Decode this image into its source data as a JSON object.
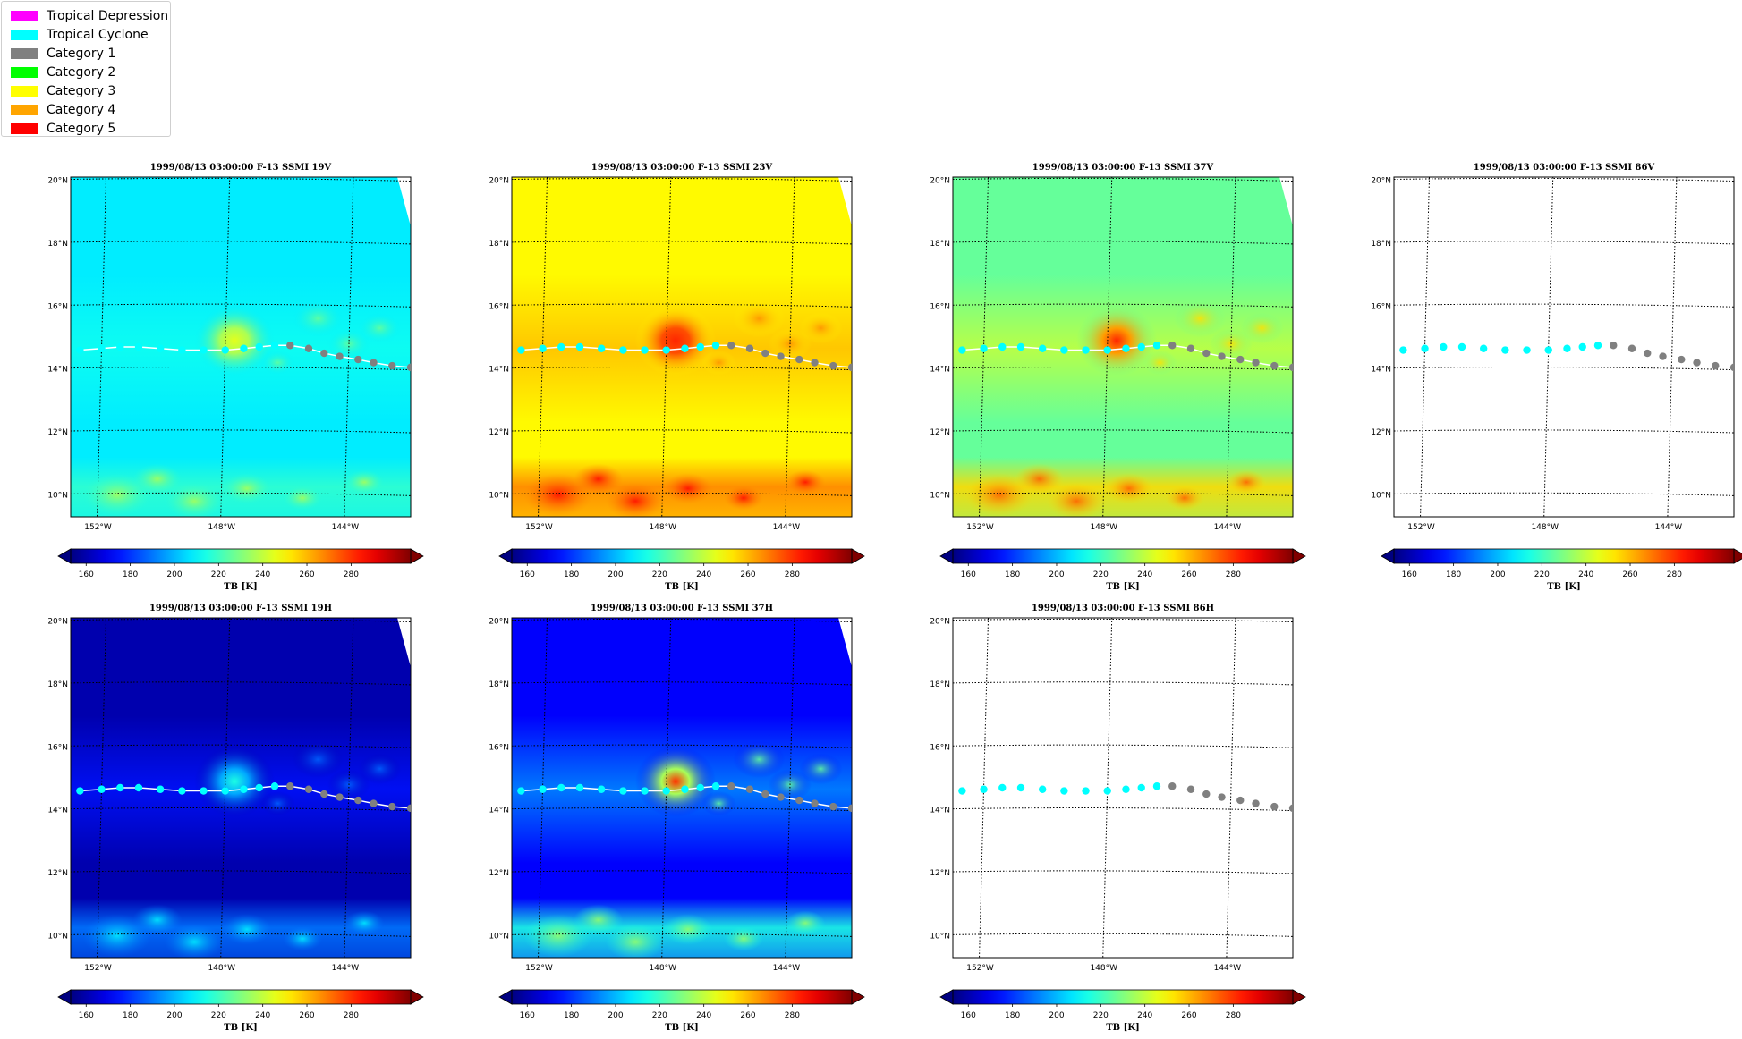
{
  "legend": {
    "items": [
      {
        "label": "Tropical Depression",
        "color": "#ff00ff"
      },
      {
        "label": "Tropical Cyclone",
        "color": "#00ffff"
      },
      {
        "label": "Category 1",
        "color": "#808080"
      },
      {
        "label": "Category 2",
        "color": "#00ff00"
      },
      {
        "label": "Category 3",
        "color": "#ffff00"
      },
      {
        "label": "Category 4",
        "color": "#ffa500"
      },
      {
        "label": "Category 5",
        "color": "#ff0000"
      }
    ]
  },
  "colorbar": {
    "ticks": [
      160,
      180,
      200,
      220,
      240,
      260,
      280
    ],
    "label": "TB [K]",
    "range": [
      153,
      307
    ],
    "colormap": "jet",
    "extend": "both"
  },
  "map": {
    "lat_ticks": [
      "20°N",
      "18°N",
      "16°N",
      "14°N",
      "12°N",
      "10°N"
    ],
    "lon_ticks": [
      "152°W",
      "148°W",
      "144°W"
    ],
    "lat_values": [
      20,
      18,
      16,
      14,
      12,
      10
    ],
    "lon_values": [
      -152,
      -148,
      -144
    ],
    "lat_range": [
      9.3,
      20.1
    ],
    "lon_range": [
      -153.0,
      -142.0
    ]
  },
  "track": {
    "lon": [
      -152.7,
      -152.0,
      -151.4,
      -150.8,
      -150.1,
      -149.4,
      -148.7,
      -148.0,
      -147.4,
      -146.9,
      -146.4,
      -145.9,
      -145.3,
      -144.8,
      -144.3,
      -143.7,
      -143.2,
      -142.6,
      -142.0
    ],
    "lat": [
      14.6,
      14.65,
      14.7,
      14.7,
      14.65,
      14.6,
      14.6,
      14.6,
      14.65,
      14.7,
      14.75,
      14.75,
      14.65,
      14.5,
      14.4,
      14.3,
      14.2,
      14.1,
      14.05
    ],
    "category": [
      "Tropical Cyclone",
      "Tropical Cyclone",
      "Tropical Cyclone",
      "Tropical Cyclone",
      "Tropical Cyclone",
      "Tropical Cyclone",
      "Tropical Cyclone",
      "Tropical Cyclone",
      "Tropical Cyclone",
      "Tropical Cyclone",
      "Tropical Cyclone",
      "Category 1",
      "Category 1",
      "Category 1",
      "Category 1",
      "Category 1",
      "Category 1",
      "Category 1",
      "Category 1"
    ]
  },
  "panels": [
    {
      "title": "1999/08/13 03:00:00  F-13 SSMI 19V",
      "channel": "19V",
      "has_image": true,
      "show_line": true,
      "base_tb": 208,
      "storm_tb": 245,
      "south_tb": 218
    },
    {
      "title": "1999/08/13 03:00:00  F-13 SSMI 23V",
      "channel": "23V",
      "has_image": true,
      "show_line": true,
      "base_tb": 250,
      "storm_tb": 282,
      "south_tb": 268
    },
    {
      "title": "1999/08/13 03:00:00  F-13 SSMI 37V",
      "channel": "37V",
      "has_image": true,
      "show_line": true,
      "base_tb": 226,
      "storm_tb": 282,
      "south_tb": 255
    },
    {
      "title": "1999/08/13 03:00:00  F-13 SSMI 86V",
      "channel": "86V",
      "has_image": false,
      "show_line": false
    },
    {
      "title": "1999/08/13 03:00:00  F-13 SSMI 19H",
      "channel": "19H",
      "has_image": true,
      "show_line": true,
      "base_tb": 160,
      "storm_tb": 215,
      "south_tb": 190
    },
    {
      "title": "1999/08/13 03:00:00  F-13 SSMI 37H",
      "channel": "37H",
      "has_image": true,
      "show_line": true,
      "base_tb": 172,
      "storm_tb": 280,
      "south_tb": 215
    },
    {
      "title": "1999/08/13 03:00:00  F-13 SSMI 86H",
      "channel": "86H",
      "has_image": false,
      "show_line": false
    }
  ]
}
